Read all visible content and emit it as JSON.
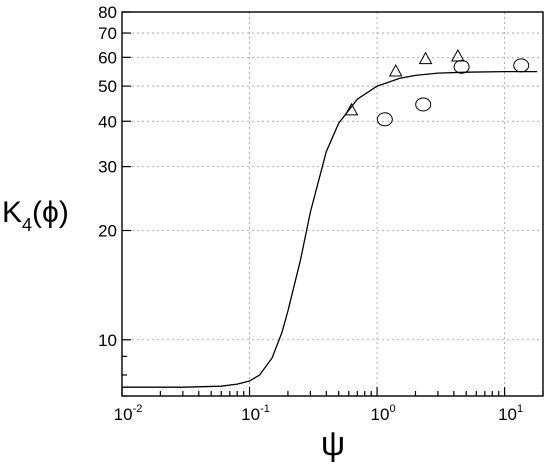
{
  "chart_data": {
    "type": "scatter",
    "x_scale": "log",
    "y_scale": "log",
    "xlim": [
      0.01,
      20
    ],
    "ylim": [
      7,
      80
    ],
    "grid": true,
    "x_ticks": [
      {
        "value": 0.01,
        "base": "10",
        "exp": "-2"
      },
      {
        "value": 0.1,
        "base": "10",
        "exp": "-1"
      },
      {
        "value": 1,
        "base": "10",
        "exp": "0"
      },
      {
        "value": 10,
        "base": "10",
        "exp": "1"
      }
    ],
    "y_ticks": [
      {
        "value": 10,
        "label": "10"
      },
      {
        "value": 20,
        "label": "20"
      },
      {
        "value": 30,
        "label": "30"
      },
      {
        "value": 40,
        "label": "40"
      },
      {
        "value": 50,
        "label": "50"
      },
      {
        "value": 60,
        "label": "60"
      },
      {
        "value": 70,
        "label": "70"
      },
      {
        "value": 80,
        "label": "80"
      }
    ],
    "xlabel": "ψ",
    "ylabel": {
      "main": "K",
      "sub": "4",
      "arg": "(ϕ)"
    },
    "series": [
      {
        "marker": "line",
        "x": [
          0.01,
          0.03,
          0.06,
          0.08,
          0.1,
          0.12,
          0.15,
          0.18,
          0.2,
          0.25,
          0.3,
          0.4,
          0.5,
          0.7,
          1,
          1.5,
          2,
          3,
          5,
          10,
          18
        ],
        "y": [
          7.4,
          7.4,
          7.45,
          7.55,
          7.7,
          8.0,
          8.9,
          10.5,
          12.0,
          16.5,
          22.5,
          33.0,
          39.5,
          46.0,
          50.0,
          52.5,
          53.5,
          54.3,
          54.6,
          54.8,
          54.8
        ]
      },
      {
        "marker": "triangle",
        "x": [
          0.63,
          1.4,
          2.4,
          4.3
        ],
        "y": [
          43.0,
          55.0,
          59.5,
          60.5
        ]
      },
      {
        "marker": "circle",
        "x": [
          1.15,
          2.3,
          4.6,
          13.5
        ],
        "y": [
          40.5,
          44.5,
          56.5,
          57.0
        ]
      }
    ]
  }
}
